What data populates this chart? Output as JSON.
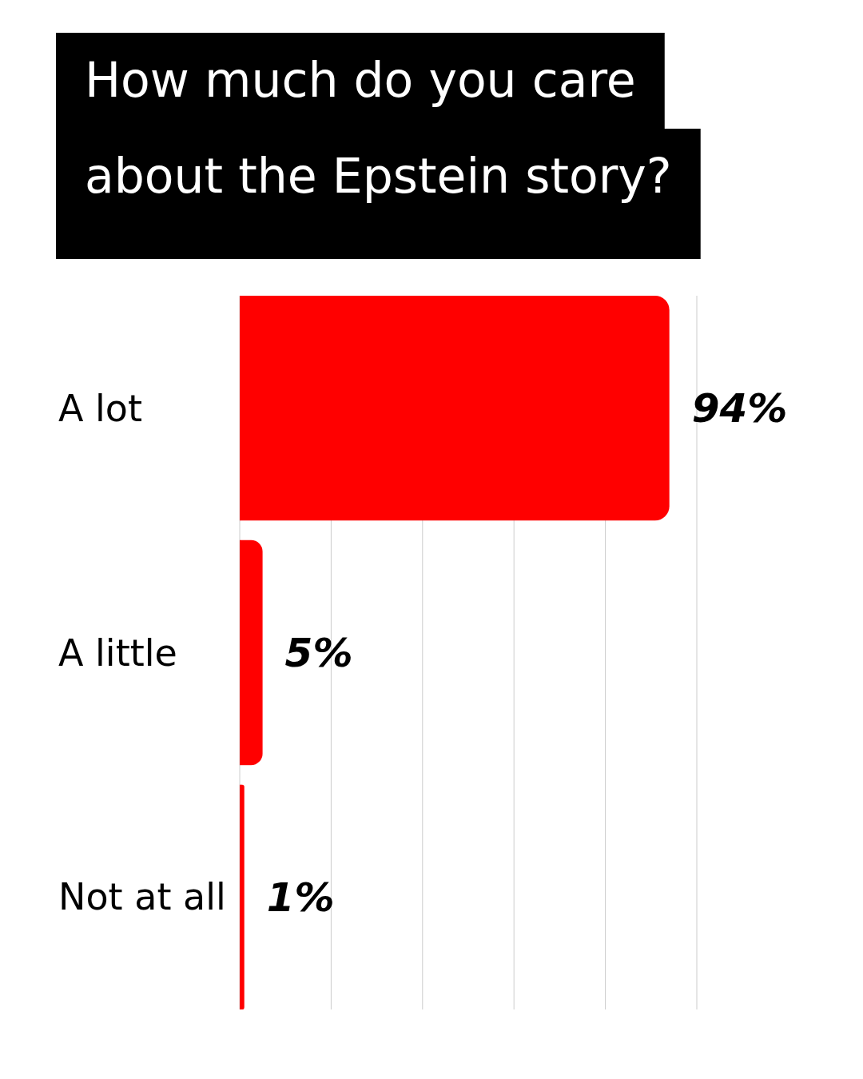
{
  "chart_data": {
    "type": "bar",
    "orientation": "horizontal",
    "title": "How much do you care about the Epstein story?",
    "categories": [
      "A lot",
      "A little",
      "Not at all"
    ],
    "values": [
      94,
      5,
      1
    ],
    "value_labels": [
      "94%",
      "5%",
      "1%"
    ],
    "color": "#ff0000",
    "xlim": [
      0,
      100
    ],
    "xticks": [
      {
        "value": 0,
        "label": null
      },
      {
        "value": 20,
        "label": null
      },
      {
        "value": 40,
        "label": null
      },
      {
        "value": 60,
        "label": null
      },
      {
        "value": 80,
        "label": null
      },
      {
        "value": 100,
        "label": null
      }
    ],
    "grid": "x",
    "tick_labels": "y"
  }
}
